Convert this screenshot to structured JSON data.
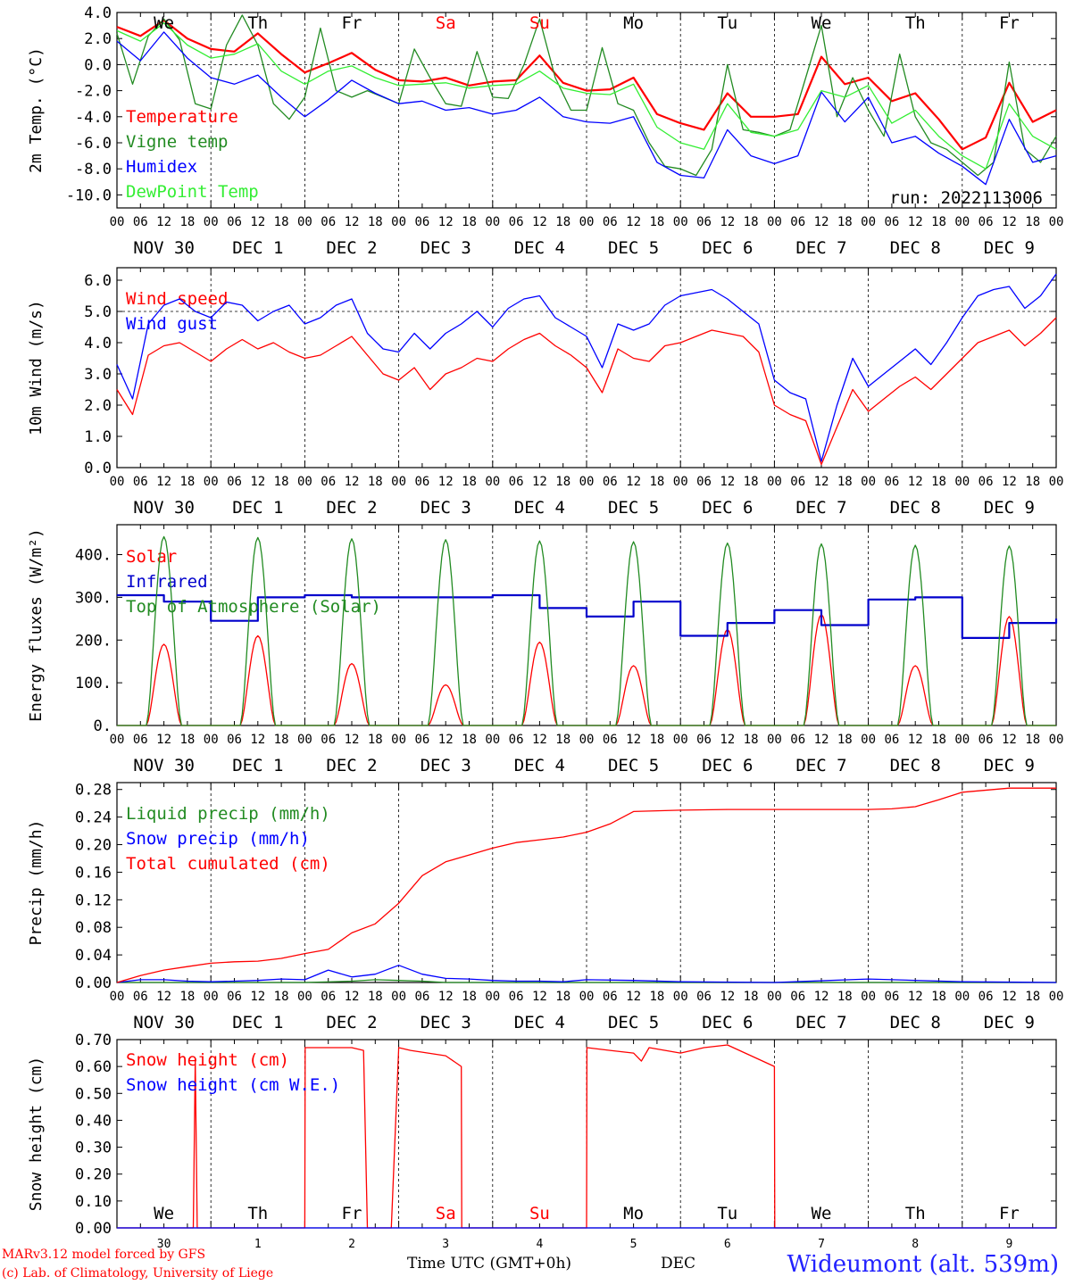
{
  "run_label": "run: 2022113006",
  "site": "Wideumont (alt. 539m)",
  "model_credit": "MARv3.12 model forced by GFS",
  "lab_credit": "(c) Lab. of Climatology, University of Liege",
  "time_label": "Time UTC (GMT+0h)",
  "month_label": "DEC",
  "weekdays": [
    "We",
    "Th",
    "Fr",
    "Sa",
    "Su",
    "Mo",
    "Tu",
    "We",
    "Th",
    "Fr"
  ],
  "weekend_color": "#ff0000",
  "hour_ticks": [
    "00",
    "06",
    "12",
    "18"
  ],
  "day_labels": [
    "NOV 30",
    "DEC 1",
    "DEC 2",
    "DEC 3",
    "DEC 4",
    "DEC 5",
    "DEC 6",
    "DEC 7",
    "DEC 8",
    "DEC 9"
  ],
  "bottom_day_numbers": [
    "30",
    "1",
    "2",
    "3",
    "4",
    "5",
    "6",
    "7",
    "8",
    "9"
  ],
  "chart_data": [
    {
      "type": "line",
      "ylabel": "2m Temp. (°C)",
      "ylim": [
        -11,
        4
      ],
      "yticks": [
        "4.0",
        "2.0",
        "0.0",
        "-2.0",
        "-4.0",
        "-6.0",
        "-8.0",
        "-10.0"
      ],
      "reference_line": 0,
      "x_unit": "hours since NOV 30 00 UTC",
      "series": [
        {
          "name": "Temperature",
          "color": "#ff0000",
          "x": [
            0,
            6,
            12,
            18,
            24,
            30,
            36,
            42,
            48,
            54,
            60,
            66,
            72,
            78,
            84,
            90,
            96,
            102,
            108,
            114,
            120,
            126,
            132,
            138,
            144,
            150,
            156,
            162,
            168,
            174,
            180,
            186,
            192,
            198,
            204,
            210,
            216,
            222,
            228,
            234,
            240
          ],
          "y": [
            2.9,
            2.2,
            3.4,
            2.0,
            1.2,
            1.0,
            2.4,
            0.8,
            -0.6,
            0.1,
            0.9,
            -0.4,
            -1.2,
            -1.3,
            -1.0,
            -1.6,
            -1.3,
            -1.2,
            0.7,
            -1.4,
            -2.0,
            -1.9,
            -1.0,
            -3.8,
            -4.5,
            -5.0,
            -2.2,
            -4.0,
            -4.0,
            -3.8,
            0.6,
            -1.5,
            -1.0,
            -2.8,
            -2.2,
            -4.2,
            -6.5,
            -5.6,
            -1.4,
            -4.4,
            -3.5
          ]
        },
        {
          "name": "Vigne temp",
          "color": "#228b22",
          "x": [
            0,
            4,
            8,
            12,
            16,
            20,
            24,
            28,
            32,
            36,
            40,
            44,
            48,
            52,
            56,
            60,
            64,
            68,
            72,
            76,
            80,
            84,
            88,
            92,
            96,
            100,
            104,
            108,
            112,
            116,
            120,
            124,
            128,
            132,
            136,
            140,
            144,
            148,
            152,
            156,
            160,
            164,
            168,
            172,
            176,
            180,
            184,
            188,
            192,
            196,
            200,
            204,
            208,
            212,
            216,
            220,
            224,
            228,
            232,
            236,
            240
          ],
          "y": [
            2.4,
            -1.5,
            2.2,
            3.5,
            1.9,
            -3.0,
            -3.4,
            1.5,
            3.8,
            1.5,
            -3.0,
            -4.2,
            -2.5,
            2.8,
            -2.0,
            -2.5,
            -2.0,
            -2.5,
            -3.0,
            1.2,
            -1.0,
            -3.0,
            -3.2,
            1.0,
            -2.5,
            -2.6,
            0.0,
            3.5,
            -1.0,
            -3.5,
            -3.5,
            1.3,
            -3.0,
            -3.5,
            -6.0,
            -7.8,
            -8.0,
            -8.5,
            -6.5,
            0.0,
            -5.0,
            -5.2,
            -5.5,
            -5.0,
            -1.0,
            3.0,
            -4.0,
            -1.0,
            -3.5,
            -5.5,
            0.8,
            -4.0,
            -6.0,
            -6.5,
            -7.5,
            -8.5,
            -7.5,
            0.2,
            -6.5,
            -7.5,
            -5.5
          ]
        },
        {
          "name": "Humidex",
          "color": "#0000ff",
          "x": [
            0,
            6,
            12,
            18,
            24,
            30,
            36,
            42,
            48,
            54,
            60,
            66,
            72,
            78,
            84,
            90,
            96,
            102,
            108,
            114,
            120,
            126,
            132,
            138,
            144,
            150,
            156,
            162,
            168,
            174,
            180,
            186,
            192,
            198,
            204,
            210,
            216,
            222,
            228,
            234,
            240
          ],
          "y": [
            1.8,
            0.3,
            2.5,
            0.5,
            -1.0,
            -1.5,
            -0.8,
            -2.5,
            -4.0,
            -2.7,
            -1.2,
            -2.2,
            -3.0,
            -2.8,
            -3.5,
            -3.3,
            -3.8,
            -3.5,
            -2.5,
            -4.0,
            -4.4,
            -4.5,
            -4.0,
            -7.5,
            -8.5,
            -8.7,
            -5.0,
            -7.0,
            -7.6,
            -7.0,
            -2.1,
            -4.4,
            -2.5,
            -6.0,
            -5.5,
            -6.8,
            -7.8,
            -9.2,
            -4.2,
            -7.5,
            -7.0
          ]
        },
        {
          "name": "DewPoint Temp",
          "color": "#33ee33",
          "x": [
            0,
            6,
            12,
            18,
            24,
            30,
            36,
            42,
            48,
            54,
            60,
            66,
            72,
            78,
            84,
            90,
            96,
            102,
            108,
            114,
            120,
            126,
            132,
            138,
            144,
            150,
            156,
            162,
            168,
            174,
            180,
            186,
            192,
            198,
            204,
            210,
            216,
            222,
            228,
            234,
            240
          ],
          "y": [
            2.6,
            1.8,
            3.2,
            1.5,
            0.5,
            0.8,
            1.6,
            -0.5,
            -1.5,
            -0.5,
            -0.1,
            -1.0,
            -1.6,
            -1.5,
            -1.4,
            -1.8,
            -1.6,
            -1.5,
            -0.5,
            -1.8,
            -2.2,
            -2.3,
            -1.5,
            -4.8,
            -6.0,
            -6.5,
            -3.0,
            -5.2,
            -5.5,
            -5.0,
            -2.0,
            -2.5,
            -1.6,
            -4.5,
            -3.5,
            -5.5,
            -7.0,
            -8.0,
            -3.0,
            -5.5,
            -6.5
          ]
        }
      ]
    },
    {
      "type": "line",
      "ylabel": "10m Wind (m/s)",
      "ylim": [
        0,
        6.4
      ],
      "yticks": [
        "6.0",
        "5.0",
        "4.0",
        "3.0",
        "2.0",
        "1.0",
        "0.0"
      ],
      "reference_line": 5,
      "x_unit": "hours since NOV 30 00 UTC",
      "series": [
        {
          "name": "Wind speed",
          "color": "#ff0000",
          "x": [
            0,
            4,
            8,
            12,
            16,
            20,
            24,
            28,
            32,
            36,
            40,
            44,
            48,
            52,
            56,
            60,
            64,
            68,
            72,
            76,
            80,
            84,
            88,
            92,
            96,
            100,
            104,
            108,
            112,
            116,
            120,
            124,
            128,
            132,
            136,
            140,
            144,
            148,
            152,
            156,
            160,
            164,
            168,
            172,
            176,
            180,
            184,
            188,
            192,
            196,
            200,
            204,
            208,
            212,
            216,
            220,
            224,
            228,
            232,
            236,
            240
          ],
          "y": [
            2.5,
            1.7,
            3.6,
            3.9,
            4.0,
            3.7,
            3.4,
            3.8,
            4.1,
            3.8,
            4.0,
            3.7,
            3.5,
            3.6,
            3.9,
            4.2,
            3.6,
            3.0,
            2.8,
            3.2,
            2.5,
            3.0,
            3.2,
            3.5,
            3.4,
            3.8,
            4.1,
            4.3,
            3.9,
            3.6,
            3.2,
            2.4,
            3.8,
            3.5,
            3.4,
            3.9,
            4.0,
            4.2,
            4.4,
            4.3,
            4.2,
            3.7,
            2.0,
            1.7,
            1.5,
            0.1,
            1.3,
            2.5,
            1.8,
            2.2,
            2.6,
            2.9,
            2.5,
            3.0,
            3.5,
            4.0,
            4.2,
            4.4,
            3.9,
            4.3,
            4.8
          ]
        },
        {
          "name": "Wind gust",
          "color": "#0000ff",
          "x": [
            0,
            4,
            8,
            12,
            16,
            20,
            24,
            28,
            32,
            36,
            40,
            44,
            48,
            52,
            56,
            60,
            64,
            68,
            72,
            76,
            80,
            84,
            88,
            92,
            96,
            100,
            104,
            108,
            112,
            116,
            120,
            124,
            128,
            132,
            136,
            140,
            144,
            148,
            152,
            156,
            160,
            164,
            168,
            172,
            176,
            180,
            184,
            188,
            192,
            196,
            200,
            204,
            208,
            212,
            216,
            220,
            224,
            228,
            232,
            236,
            240
          ],
          "y": [
            3.3,
            2.2,
            4.6,
            5.2,
            5.4,
            5.0,
            4.8,
            5.3,
            5.2,
            4.7,
            5.0,
            5.2,
            4.6,
            4.8,
            5.2,
            5.4,
            4.3,
            3.8,
            3.7,
            4.3,
            3.8,
            4.3,
            4.6,
            5.0,
            4.5,
            5.1,
            5.4,
            5.5,
            4.8,
            4.5,
            4.2,
            3.2,
            4.6,
            4.4,
            4.6,
            5.2,
            5.5,
            5.6,
            5.7,
            5.4,
            5.0,
            4.6,
            2.8,
            2.4,
            2.2,
            0.2,
            2.0,
            3.5,
            2.6,
            3.0,
            3.4,
            3.8,
            3.3,
            4.0,
            4.8,
            5.5,
            5.7,
            5.8,
            5.1,
            5.5,
            6.2
          ]
        }
      ]
    },
    {
      "type": "line",
      "ylabel": "Energy fluxes (W/m²)",
      "ylim": [
        0,
        470
      ],
      "yticks": [
        "400.",
        "300.",
        "200.",
        "100.",
        "0."
      ],
      "x_unit": "hours since NOV 30 00 UTC",
      "series": [
        {
          "name": "Solar",
          "color": "#ff0000",
          "daily_peak_hour": 12,
          "daily_peaks": [
            190,
            210,
            145,
            95,
            195,
            140,
            225,
            260,
            140,
            255
          ]
        },
        {
          "name": "Infrared",
          "color": "#0000cc",
          "x": [
            0,
            12,
            24,
            36,
            48,
            60,
            72,
            84,
            96,
            108,
            120,
            132,
            144,
            156,
            168,
            180,
            192,
            204,
            216,
            228,
            240
          ],
          "y": [
            305,
            290,
            245,
            300,
            305,
            300,
            300,
            300,
            305,
            275,
            255,
            290,
            210,
            240,
            270,
            235,
            295,
            300,
            205,
            240,
            250
          ]
        },
        {
          "name": "Top of Atmosphere (Solar)",
          "color": "#228b22",
          "daily_peak_hour": 12,
          "daily_peaks": [
            442,
            440,
            437,
            435,
            432,
            430,
            427,
            425,
            422,
            420
          ]
        }
      ]
    },
    {
      "type": "line",
      "ylabel": "Precip (mm/h)",
      "ylim": [
        0,
        0.29
      ],
      "yticks": [
        "0.28",
        "0.24",
        "0.20",
        "0.16",
        "0.12",
        "0.08",
        "0.04",
        "0.00"
      ],
      "x_unit": "hours since NOV 30 00 UTC",
      "series": [
        {
          "name": "Liquid precip (mm/h)",
          "color": "#228b22",
          "x": [
            0,
            48,
            60,
            66,
            72,
            78,
            84,
            240
          ],
          "y": [
            0,
            0,
            0.002,
            0.004,
            0.003,
            0.002,
            0,
            0
          ]
        },
        {
          "name": "Snow precip (mm/h)",
          "color": "#0000ff",
          "x": [
            0,
            6,
            12,
            18,
            24,
            30,
            36,
            42,
            48,
            54,
            60,
            66,
            72,
            78,
            84,
            90,
            96,
            102,
            108,
            114,
            120,
            132,
            144,
            168,
            192,
            216,
            240
          ],
          "y": [
            0,
            0.004,
            0.004,
            0.002,
            0.001,
            0.002,
            0.003,
            0.005,
            0.004,
            0.018,
            0.008,
            0.012,
            0.025,
            0.012,
            0.006,
            0.005,
            0.003,
            0.002,
            0.002,
            0.001,
            0.004,
            0.003,
            0.001,
            0.0,
            0.005,
            0.001,
            0.0
          ]
        },
        {
          "name": "Total cumulated (cm)",
          "color": "#ff0000",
          "x": [
            0,
            6,
            12,
            18,
            24,
            30,
            36,
            42,
            48,
            54,
            60,
            66,
            72,
            78,
            84,
            90,
            96,
            102,
            108,
            114,
            120,
            126,
            132,
            144,
            156,
            168,
            180,
            192,
            198,
            204,
            210,
            216,
            228,
            240
          ],
          "y": [
            0.0,
            0.01,
            0.018,
            0.023,
            0.028,
            0.03,
            0.031,
            0.035,
            0.042,
            0.048,
            0.072,
            0.085,
            0.115,
            0.155,
            0.175,
            0.185,
            0.195,
            0.203,
            0.207,
            0.211,
            0.218,
            0.23,
            0.248,
            0.25,
            0.251,
            0.251,
            0.251,
            0.251,
            0.252,
            0.255,
            0.265,
            0.276,
            0.282,
            0.282
          ]
        }
      ]
    },
    {
      "type": "line",
      "ylabel": "Snow height (cm)",
      "ylim": [
        0,
        0.7
      ],
      "yticks": [
        "0.70",
        "0.60",
        "0.50",
        "0.40",
        "0.30",
        "0.20",
        "0.10",
        "0.00"
      ],
      "x_unit": "hours since NOV 30 00 UTC",
      "series": [
        {
          "name": "Snow height (cm)",
          "color": "#ff0000",
          "x": [
            0,
            19.5,
            20,
            20.5,
            48,
            48.1,
            60,
            63,
            64,
            70,
            70.1,
            72,
            75,
            84,
            88,
            88.1,
            120,
            120.1,
            126,
            132,
            134,
            136,
            144,
            150,
            156,
            168,
            168.1,
            240
          ],
          "y": [
            0,
            0,
            0.63,
            0,
            0,
            0.67,
            0.67,
            0.66,
            0,
            0,
            0,
            0.67,
            0.66,
            0.64,
            0.6,
            0,
            0,
            0.67,
            0.66,
            0.65,
            0.62,
            0.67,
            0.65,
            0.67,
            0.68,
            0.6,
            0,
            0
          ]
        },
        {
          "name": "Snow height (cm W.E.)",
          "color": "#0000ff",
          "x": [
            0,
            240
          ],
          "y": [
            0,
            0
          ]
        }
      ]
    }
  ]
}
